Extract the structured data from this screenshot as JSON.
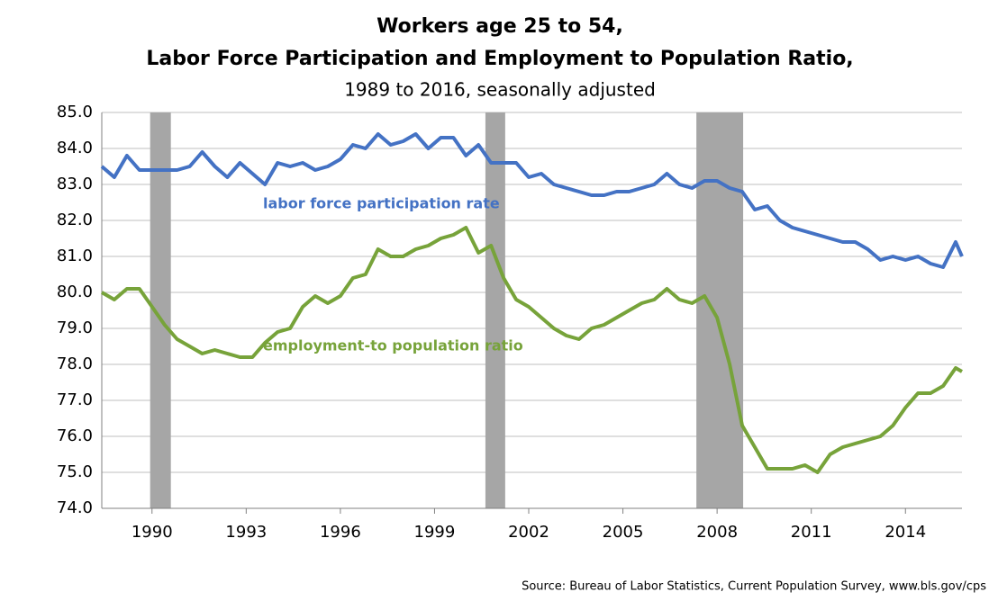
{
  "chart_data": {
    "type": "line",
    "title": "Workers age 25 to 54,",
    "title2": "Labor Force Participation and Employment to Population Ratio,",
    "subtitle": "1989 to 2016, seasonally adjusted",
    "source": "Source: Bureau of Labor Statistics, Current Population Survey, www.bls.gov/cps",
    "x": [
      1988.4,
      1988.8,
      1989.2,
      1989.6,
      1990.0,
      1990.4,
      1990.8,
      1991.2,
      1991.6,
      1992.0,
      1992.4,
      1992.8,
      1993.2,
      1993.6,
      1994.0,
      1994.4,
      1994.8,
      1995.2,
      1995.6,
      1996.0,
      1996.4,
      1996.8,
      1997.2,
      1997.6,
      1998.0,
      1998.4,
      1998.8,
      1999.2,
      1999.6,
      2000.0,
      2000.4,
      2000.8,
      2001.2,
      2001.6,
      2002.0,
      2002.4,
      2002.8,
      2003.2,
      2003.6,
      2004.0,
      2004.4,
      2004.8,
      2005.2,
      2005.6,
      2006.0,
      2006.4,
      2006.8,
      2007.2,
      2007.6,
      2008.0,
      2008.4,
      2008.8,
      2009.2,
      2009.6,
      2010.0,
      2010.4,
      2010.8,
      2011.2,
      2011.6,
      2012.0,
      2012.4,
      2012.8,
      2013.2,
      2013.6,
      2014.0,
      2014.4,
      2014.8,
      2015.2,
      2015.6,
      2015.8
    ],
    "series": [
      {
        "name": "labor force participation rate",
        "color": "#4472c4",
        "values": [
          83.5,
          83.2,
          83.8,
          83.4,
          83.4,
          83.4,
          83.4,
          83.5,
          83.9,
          83.5,
          83.2,
          83.6,
          83.3,
          83.0,
          83.6,
          83.5,
          83.6,
          83.4,
          83.5,
          83.7,
          84.1,
          84.0,
          84.4,
          84.1,
          84.2,
          84.4,
          84.0,
          84.3,
          84.3,
          83.8,
          84.1,
          83.6,
          83.6,
          83.6,
          83.2,
          83.3,
          83.0,
          82.9,
          82.8,
          82.7,
          82.7,
          82.8,
          82.8,
          82.9,
          83.0,
          83.3,
          83.0,
          82.9,
          83.1,
          83.1,
          82.9,
          82.8,
          82.3,
          82.4,
          82.0,
          81.8,
          81.7,
          81.6,
          81.5,
          81.4,
          81.4,
          81.2,
          80.9,
          81.0,
          80.9,
          81.0,
          80.8,
          80.7,
          81.4,
          81.0
        ]
      },
      {
        "name": "employment-to population ratio",
        "color": "#77a33a",
        "values": [
          80.0,
          79.8,
          80.1,
          80.1,
          79.6,
          79.1,
          78.7,
          78.5,
          78.3,
          78.4,
          78.3,
          78.2,
          78.2,
          78.6,
          78.9,
          79.0,
          79.6,
          79.9,
          79.7,
          79.9,
          80.4,
          80.5,
          81.2,
          81.0,
          81.0,
          81.2,
          81.3,
          81.5,
          81.6,
          81.8,
          81.1,
          81.3,
          80.4,
          79.8,
          79.6,
          79.3,
          79.0,
          78.8,
          78.7,
          79.0,
          79.1,
          79.3,
          79.5,
          79.7,
          79.8,
          80.1,
          79.8,
          79.7,
          79.9,
          79.3,
          78.0,
          76.3,
          75.7,
          75.1,
          75.1,
          75.1,
          75.2,
          75.0,
          75.5,
          75.7,
          75.8,
          75.9,
          76.0,
          76.3,
          76.8,
          77.2,
          77.2,
          77.4,
          77.9,
          77.8
        ]
      }
    ],
    "recessions": [
      [
        1989.94,
        1990.6
      ],
      [
        2000.62,
        2001.25
      ],
      [
        2007.34,
        2008.83
      ]
    ],
    "recession_color": "#a6a6a6",
    "xlim": [
      1988.4,
      2015.8
    ],
    "xticks": [
      1990,
      1993,
      1996,
      1999,
      2002,
      2005,
      2008,
      2011,
      2014
    ],
    "ylim": [
      74,
      85
    ],
    "yticks": [
      {
        "value": 74,
        "label": "74.0"
      },
      {
        "value": 75,
        "label": "75.0"
      },
      {
        "value": 76,
        "label": "76.0"
      },
      {
        "value": 77,
        "label": "77.0"
      },
      {
        "value": 78,
        "label": "78.0"
      },
      {
        "value": 79,
        "label": "79.0"
      },
      {
        "value": 80,
        "label": "80.0"
      },
      {
        "value": 81,
        "label": "81.0"
      },
      {
        "value": 82,
        "label": "82.0"
      },
      {
        "value": 83,
        "label": "83.0"
      },
      {
        "value": 84,
        "label": "84.0"
      },
      {
        "value": 85,
        "label": "85.0"
      }
    ],
    "grid": true
  }
}
